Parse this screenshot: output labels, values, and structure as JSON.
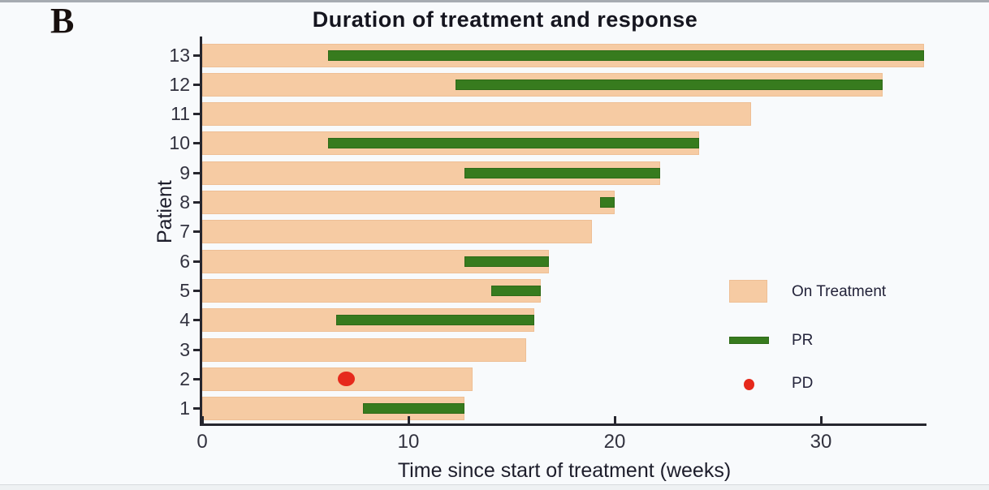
{
  "panel_label": "B",
  "chart_data": {
    "type": "bar",
    "subtype": "horizontal-swimmer",
    "title": "Duration of treatment and response",
    "xlabel": "Time since start of treatment (weeks)",
    "ylabel": "Patient",
    "xlim": [
      0,
      35.5
    ],
    "x_ticks": [
      0,
      10,
      20,
      30
    ],
    "grid": false,
    "legend_position": "right-middle",
    "legend": [
      {
        "label": "On Treatment",
        "marker": "bar",
        "color": "#f6cba3"
      },
      {
        "label": "PR",
        "marker": "bar",
        "color": "#377b1e"
      },
      {
        "label": "PD",
        "marker": "point",
        "color": "#e6291c"
      }
    ],
    "series_units": "weeks",
    "patients": [
      {
        "id": 13,
        "on_treatment": [
          0,
          35.0
        ],
        "pr": [
          6.1,
          35.0
        ],
        "pd": null
      },
      {
        "id": 12,
        "on_treatment": [
          0,
          33.0
        ],
        "pr": [
          12.3,
          33.0
        ],
        "pd": null
      },
      {
        "id": 11,
        "on_treatment": [
          0,
          26.6
        ],
        "pr": null,
        "pd": null
      },
      {
        "id": 10,
        "on_treatment": [
          0,
          24.1
        ],
        "pr": [
          6.1,
          24.1
        ],
        "pd": null
      },
      {
        "id": 9,
        "on_treatment": [
          0,
          22.2
        ],
        "pr": [
          12.7,
          22.2
        ],
        "pd": null
      },
      {
        "id": 8,
        "on_treatment": [
          0,
          20.0
        ],
        "pr": [
          19.3,
          20.0
        ],
        "pd": null
      },
      {
        "id": 7,
        "on_treatment": [
          0,
          18.9
        ],
        "pr": null,
        "pd": null
      },
      {
        "id": 6,
        "on_treatment": [
          0,
          16.8
        ],
        "pr": [
          12.7,
          16.8
        ],
        "pd": null
      },
      {
        "id": 5,
        "on_treatment": [
          0,
          16.4
        ],
        "pr": [
          14.0,
          16.4
        ],
        "pd": null
      },
      {
        "id": 4,
        "on_treatment": [
          0,
          16.1
        ],
        "pr": [
          6.5,
          16.1
        ],
        "pd": null
      },
      {
        "id": 3,
        "on_treatment": [
          0,
          15.7
        ],
        "pr": null,
        "pd": null
      },
      {
        "id": 2,
        "on_treatment": [
          0,
          13.1
        ],
        "pr": null,
        "pd": 7.0
      },
      {
        "id": 1,
        "on_treatment": [
          0,
          12.7
        ],
        "pr": [
          7.8,
          12.7
        ],
        "pd": null
      }
    ]
  },
  "colors": {
    "on_treatment": "#f6cba3",
    "pr": "#377b1e",
    "pd": "#e6291c",
    "axis_ink": "#26262e",
    "background": "#f8fafc"
  }
}
